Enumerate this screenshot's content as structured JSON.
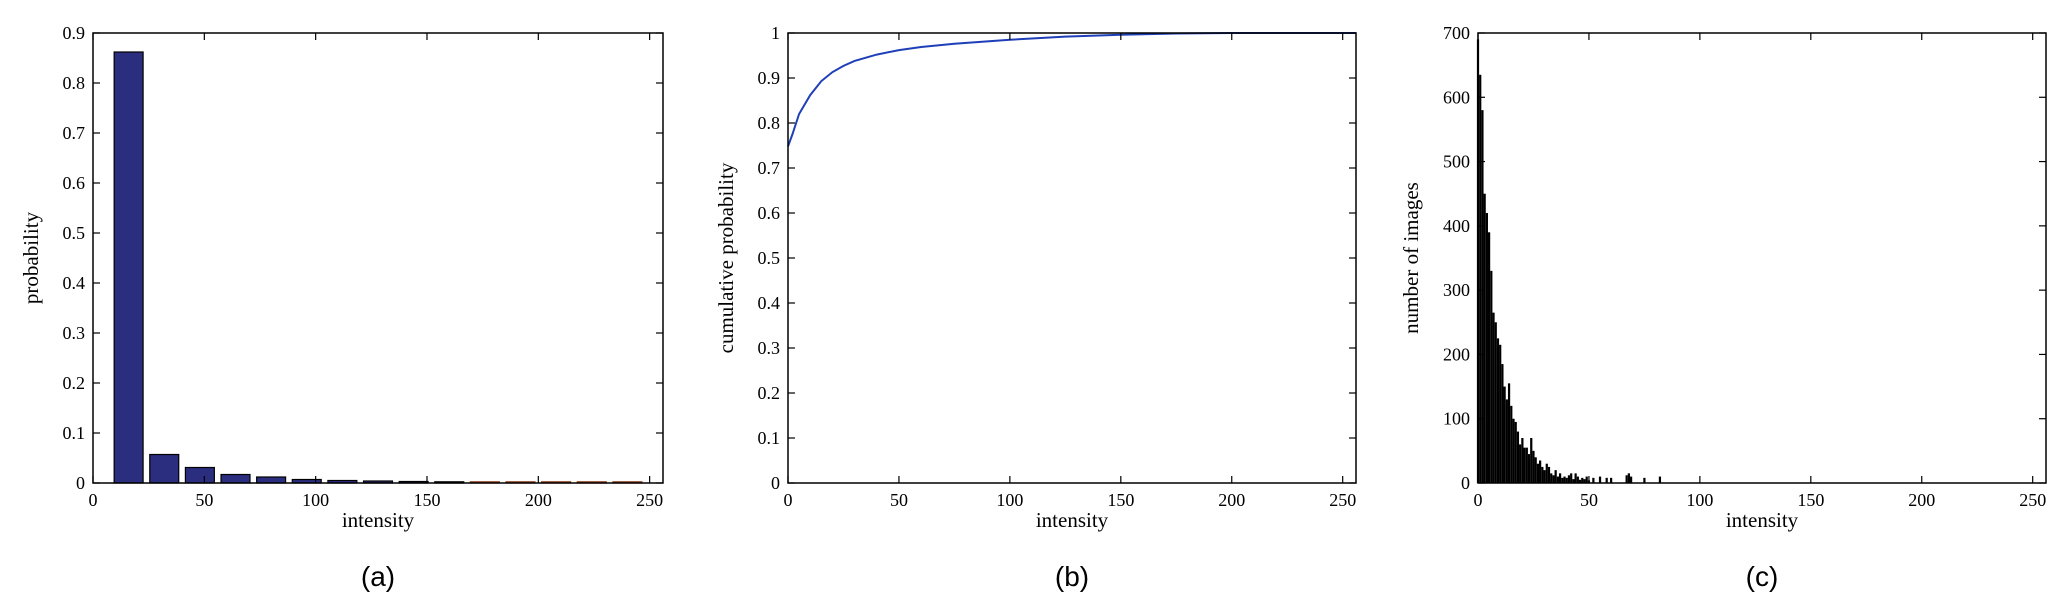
{
  "chart_data": [
    {
      "type": "bar",
      "caption": "(a)",
      "xlabel": "intensity",
      "ylabel": "probability",
      "xlim": [
        0,
        256
      ],
      "ylim": [
        0,
        0.9
      ],
      "xticks": [
        0,
        50,
        100,
        150,
        200,
        250
      ],
      "yticks": [
        0,
        0.1,
        0.2,
        0.3,
        0.4,
        0.5,
        0.6,
        0.7,
        0.8,
        0.9
      ],
      "bar_width": 13,
      "x": [
        16,
        32,
        48,
        64,
        80,
        96,
        112,
        128,
        144,
        160,
        176,
        192,
        208,
        224,
        240
      ],
      "values": [
        0.862,
        0.057,
        0.031,
        0.017,
        0.012,
        0.007,
        0.005,
        0.004,
        0.003,
        0.002,
        0.001,
        0.001,
        0.001,
        0.001,
        0.0005
      ],
      "colors": {
        "bar_fill": "#2b2d7e",
        "bar_edge": "#000000",
        "small_bar": "#8b3a1a"
      },
      "grid": false
    },
    {
      "type": "line",
      "caption": "(b)",
      "xlabel": "intensity",
      "ylabel": "cumulative probability",
      "xlim": [
        0,
        256
      ],
      "ylim": [
        0,
        1
      ],
      "xticks": [
        0,
        50,
        100,
        150,
        200,
        250
      ],
      "yticks": [
        0,
        0.1,
        0.2,
        0.3,
        0.4,
        0.5,
        0.6,
        0.7,
        0.8,
        0.9,
        1
      ],
      "x": [
        0,
        2,
        5,
        10,
        15,
        20,
        25,
        30,
        40,
        50,
        60,
        75,
        100,
        125,
        150,
        175,
        200,
        225,
        256
      ],
      "values": [
        0.748,
        0.775,
        0.82,
        0.862,
        0.893,
        0.913,
        0.927,
        0.938,
        0.952,
        0.962,
        0.969,
        0.976,
        0.985,
        0.992,
        0.996,
        0.999,
        1.0,
        1.0,
        1.0
      ],
      "colors": {
        "line": "#1f3fb8"
      },
      "grid": false
    },
    {
      "type": "bar",
      "caption": "(c)",
      "xlabel": "intensity",
      "ylabel": "number of images",
      "xlim": [
        0,
        256
      ],
      "ylim": [
        0,
        700
      ],
      "xticks": [
        0,
        50,
        100,
        150,
        200,
        250
      ],
      "yticks": [
        0,
        100,
        200,
        300,
        400,
        500,
        600,
        700
      ],
      "bar_width": 1,
      "x": [
        0,
        1,
        2,
        3,
        4,
        5,
        6,
        7,
        8,
        9,
        10,
        11,
        12,
        13,
        14,
        15,
        16,
        17,
        18,
        19,
        20,
        21,
        22,
        23,
        24,
        25,
        26,
        27,
        28,
        29,
        30,
        31,
        32,
        33,
        34,
        35,
        36,
        37,
        38,
        39,
        40,
        41,
        42,
        43,
        44,
        45,
        46,
        47,
        48,
        49,
        50,
        52,
        55,
        58,
        60,
        67,
        68,
        69,
        75,
        82
      ],
      "values": [
        690,
        635,
        580,
        450,
        420,
        390,
        330,
        265,
        250,
        225,
        215,
        185,
        150,
        130,
        155,
        120,
        100,
        95,
        80,
        60,
        70,
        55,
        55,
        45,
        70,
        50,
        40,
        30,
        35,
        25,
        20,
        30,
        25,
        15,
        12,
        20,
        10,
        15,
        8,
        10,
        8,
        12,
        15,
        6,
        15,
        10,
        5,
        8,
        6,
        10,
        4,
        8,
        10,
        8,
        8,
        12,
        15,
        10,
        8,
        10
      ],
      "colors": {
        "bar_fill": "#000000"
      },
      "grid": false
    }
  ]
}
